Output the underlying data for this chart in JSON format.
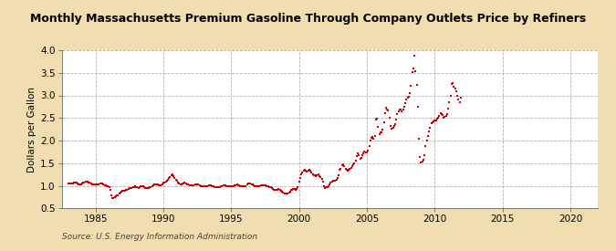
{
  "title": "Monthly Massachusetts Premium Gasoline Through Company Outlets Price by Refiners",
  "ylabel": "Dollars per Gallon",
  "source": "Source: U.S. Energy Information Administration",
  "background_color": "#f0deb0",
  "plot_bg_color": "#ffffff",
  "marker_color": "#cc0000",
  "xlim": [
    1982.5,
    2022
  ],
  "ylim": [
    0.5,
    4.0
  ],
  "xticks": [
    1985,
    1990,
    1995,
    2000,
    2005,
    2010,
    2015,
    2020
  ],
  "yticks": [
    0.5,
    1.0,
    1.5,
    2.0,
    2.5,
    3.0,
    3.5,
    4.0
  ],
  "data": [
    [
      1983.0,
      1.05
    ],
    [
      1983.08,
      1.05
    ],
    [
      1983.17,
      1.06
    ],
    [
      1983.25,
      1.06
    ],
    [
      1983.33,
      1.06
    ],
    [
      1983.42,
      1.07
    ],
    [
      1983.5,
      1.07
    ],
    [
      1983.58,
      1.07
    ],
    [
      1983.67,
      1.05
    ],
    [
      1983.75,
      1.04
    ],
    [
      1983.83,
      1.04
    ],
    [
      1983.92,
      1.04
    ],
    [
      1984.0,
      1.05
    ],
    [
      1984.08,
      1.07
    ],
    [
      1984.17,
      1.08
    ],
    [
      1984.25,
      1.09
    ],
    [
      1984.33,
      1.09
    ],
    [
      1984.42,
      1.09
    ],
    [
      1984.5,
      1.08
    ],
    [
      1984.58,
      1.07
    ],
    [
      1984.67,
      1.05
    ],
    [
      1984.75,
      1.04
    ],
    [
      1984.83,
      1.04
    ],
    [
      1984.92,
      1.03
    ],
    [
      1985.0,
      1.04
    ],
    [
      1985.08,
      1.04
    ],
    [
      1985.17,
      1.04
    ],
    [
      1985.25,
      1.04
    ],
    [
      1985.33,
      1.05
    ],
    [
      1985.42,
      1.06
    ],
    [
      1985.5,
      1.05
    ],
    [
      1985.58,
      1.04
    ],
    [
      1985.67,
      1.02
    ],
    [
      1985.75,
      1.01
    ],
    [
      1985.83,
      1.0
    ],
    [
      1985.92,
      0.98
    ],
    [
      1986.0,
      0.97
    ],
    [
      1986.08,
      0.9
    ],
    [
      1986.17,
      0.78
    ],
    [
      1986.25,
      0.73
    ],
    [
      1986.33,
      0.72
    ],
    [
      1986.42,
      0.74
    ],
    [
      1986.5,
      0.76
    ],
    [
      1986.58,
      0.78
    ],
    [
      1986.67,
      0.79
    ],
    [
      1986.75,
      0.82
    ],
    [
      1986.83,
      0.84
    ],
    [
      1986.92,
      0.86
    ],
    [
      1987.0,
      0.88
    ],
    [
      1987.08,
      0.88
    ],
    [
      1987.17,
      0.89
    ],
    [
      1987.25,
      0.9
    ],
    [
      1987.33,
      0.91
    ],
    [
      1987.42,
      0.92
    ],
    [
      1987.5,
      0.94
    ],
    [
      1987.58,
      0.95
    ],
    [
      1987.67,
      0.95
    ],
    [
      1987.75,
      0.96
    ],
    [
      1987.83,
      0.97
    ],
    [
      1987.92,
      0.98
    ],
    [
      1988.0,
      0.97
    ],
    [
      1988.08,
      0.96
    ],
    [
      1988.17,
      0.95
    ],
    [
      1988.25,
      0.96
    ],
    [
      1988.33,
      0.98
    ],
    [
      1988.42,
      0.99
    ],
    [
      1988.5,
      0.98
    ],
    [
      1988.58,
      0.97
    ],
    [
      1988.67,
      0.95
    ],
    [
      1988.75,
      0.94
    ],
    [
      1988.83,
      0.94
    ],
    [
      1988.92,
      0.94
    ],
    [
      1989.0,
      0.96
    ],
    [
      1989.08,
      0.97
    ],
    [
      1989.17,
      0.99
    ],
    [
      1989.25,
      1.01
    ],
    [
      1989.33,
      1.03
    ],
    [
      1989.42,
      1.04
    ],
    [
      1989.5,
      1.04
    ],
    [
      1989.58,
      1.03
    ],
    [
      1989.67,
      1.02
    ],
    [
      1989.75,
      1.01
    ],
    [
      1989.83,
      1.01
    ],
    [
      1989.92,
      1.04
    ],
    [
      1990.0,
      1.07
    ],
    [
      1990.08,
      1.08
    ],
    [
      1990.17,
      1.09
    ],
    [
      1990.25,
      1.11
    ],
    [
      1990.33,
      1.13
    ],
    [
      1990.42,
      1.17
    ],
    [
      1990.5,
      1.19
    ],
    [
      1990.58,
      1.24
    ],
    [
      1990.67,
      1.25
    ],
    [
      1990.75,
      1.22
    ],
    [
      1990.83,
      1.18
    ],
    [
      1990.92,
      1.14
    ],
    [
      1991.0,
      1.12
    ],
    [
      1991.08,
      1.08
    ],
    [
      1991.17,
      1.05
    ],
    [
      1991.25,
      1.04
    ],
    [
      1991.33,
      1.04
    ],
    [
      1991.42,
      1.05
    ],
    [
      1991.5,
      1.06
    ],
    [
      1991.58,
      1.07
    ],
    [
      1991.67,
      1.05
    ],
    [
      1991.75,
      1.04
    ],
    [
      1991.83,
      1.03
    ],
    [
      1991.92,
      1.02
    ],
    [
      1992.0,
      1.01
    ],
    [
      1992.08,
      1.01
    ],
    [
      1992.17,
      1.01
    ],
    [
      1992.25,
      1.02
    ],
    [
      1992.33,
      1.03
    ],
    [
      1992.42,
      1.04
    ],
    [
      1992.5,
      1.04
    ],
    [
      1992.58,
      1.03
    ],
    [
      1992.67,
      1.02
    ],
    [
      1992.75,
      1.0
    ],
    [
      1992.83,
      1.0
    ],
    [
      1992.92,
      0.99
    ],
    [
      1993.0,
      1.0
    ],
    [
      1993.08,
      1.0
    ],
    [
      1993.17,
      1.0
    ],
    [
      1993.25,
      1.0
    ],
    [
      1993.33,
      1.01
    ],
    [
      1993.42,
      1.02
    ],
    [
      1993.5,
      1.01
    ],
    [
      1993.58,
      1.0
    ],
    [
      1993.67,
      0.99
    ],
    [
      1993.75,
      0.97
    ],
    [
      1993.83,
      0.97
    ],
    [
      1993.92,
      0.96
    ],
    [
      1994.0,
      0.97
    ],
    [
      1994.08,
      0.97
    ],
    [
      1994.17,
      0.97
    ],
    [
      1994.25,
      0.98
    ],
    [
      1994.33,
      1.0
    ],
    [
      1994.42,
      1.01
    ],
    [
      1994.5,
      1.02
    ],
    [
      1994.58,
      1.01
    ],
    [
      1994.67,
      1.0
    ],
    [
      1994.75,
      0.99
    ],
    [
      1994.83,
      0.98
    ],
    [
      1994.92,
      0.98
    ],
    [
      1995.0,
      0.99
    ],
    [
      1995.08,
      0.99
    ],
    [
      1995.17,
      1.0
    ],
    [
      1995.25,
      1.01
    ],
    [
      1995.33,
      1.02
    ],
    [
      1995.42,
      1.03
    ],
    [
      1995.5,
      1.02
    ],
    [
      1995.58,
      1.01
    ],
    [
      1995.67,
      1.0
    ],
    [
      1995.75,
      0.99
    ],
    [
      1995.83,
      0.98
    ],
    [
      1995.92,
      0.98
    ],
    [
      1996.0,
      0.99
    ],
    [
      1996.08,
      1.0
    ],
    [
      1996.17,
      1.03
    ],
    [
      1996.25,
      1.06
    ],
    [
      1996.33,
      1.06
    ],
    [
      1996.42,
      1.05
    ],
    [
      1996.5,
      1.04
    ],
    [
      1996.58,
      1.03
    ],
    [
      1996.67,
      1.01
    ],
    [
      1996.75,
      1.0
    ],
    [
      1996.83,
      1.0
    ],
    [
      1996.92,
      0.99
    ],
    [
      1997.0,
      0.99
    ],
    [
      1997.08,
      1.0
    ],
    [
      1997.17,
      1.01
    ],
    [
      1997.25,
      1.02
    ],
    [
      1997.33,
      1.02
    ],
    [
      1997.42,
      1.02
    ],
    [
      1997.5,
      1.01
    ],
    [
      1997.58,
      1.0
    ],
    [
      1997.67,
      0.99
    ],
    [
      1997.75,
      0.98
    ],
    [
      1997.83,
      0.97
    ],
    [
      1997.92,
      0.96
    ],
    [
      1998.0,
      0.95
    ],
    [
      1998.08,
      0.93
    ],
    [
      1998.17,
      0.91
    ],
    [
      1998.25,
      0.9
    ],
    [
      1998.33,
      0.9
    ],
    [
      1998.42,
      0.91
    ],
    [
      1998.5,
      0.92
    ],
    [
      1998.58,
      0.91
    ],
    [
      1998.67,
      0.89
    ],
    [
      1998.75,
      0.87
    ],
    [
      1998.83,
      0.85
    ],
    [
      1998.92,
      0.83
    ],
    [
      1999.0,
      0.83
    ],
    [
      1999.08,
      0.83
    ],
    [
      1999.17,
      0.83
    ],
    [
      1999.25,
      0.85
    ],
    [
      1999.33,
      0.87
    ],
    [
      1999.42,
      0.9
    ],
    [
      1999.5,
      0.91
    ],
    [
      1999.58,
      0.92
    ],
    [
      1999.67,
      0.92
    ],
    [
      1999.75,
      0.91
    ],
    [
      1999.83,
      0.92
    ],
    [
      1999.92,
      0.97
    ],
    [
      2000.0,
      1.1
    ],
    [
      2000.08,
      1.17
    ],
    [
      2000.17,
      1.26
    ],
    [
      2000.25,
      1.3
    ],
    [
      2000.33,
      1.34
    ],
    [
      2000.42,
      1.35
    ],
    [
      2000.5,
      1.33
    ],
    [
      2000.58,
      1.32
    ],
    [
      2000.67,
      1.34
    ],
    [
      2000.75,
      1.36
    ],
    [
      2000.83,
      1.34
    ],
    [
      2000.92,
      1.3
    ],
    [
      2001.0,
      1.26
    ],
    [
      2001.08,
      1.24
    ],
    [
      2001.17,
      1.23
    ],
    [
      2001.25,
      1.22
    ],
    [
      2001.33,
      1.24
    ],
    [
      2001.42,
      1.26
    ],
    [
      2001.5,
      1.22
    ],
    [
      2001.58,
      1.2
    ],
    [
      2001.67,
      1.15
    ],
    [
      2001.75,
      1.1
    ],
    [
      2001.83,
      1.0
    ],
    [
      2001.92,
      0.95
    ],
    [
      2002.0,
      0.96
    ],
    [
      2002.08,
      0.96
    ],
    [
      2002.17,
      0.99
    ],
    [
      2002.25,
      1.03
    ],
    [
      2002.33,
      1.08
    ],
    [
      2002.42,
      1.1
    ],
    [
      2002.5,
      1.12
    ],
    [
      2002.58,
      1.12
    ],
    [
      2002.67,
      1.11
    ],
    [
      2002.75,
      1.13
    ],
    [
      2002.83,
      1.18
    ],
    [
      2002.92,
      1.24
    ],
    [
      2003.0,
      1.35
    ],
    [
      2003.08,
      1.38
    ],
    [
      2003.17,
      1.46
    ],
    [
      2003.25,
      1.48
    ],
    [
      2003.33,
      1.44
    ],
    [
      2003.42,
      1.38
    ],
    [
      2003.5,
      1.35
    ],
    [
      2003.58,
      1.33
    ],
    [
      2003.67,
      1.35
    ],
    [
      2003.75,
      1.38
    ],
    [
      2003.83,
      1.4
    ],
    [
      2003.92,
      1.43
    ],
    [
      2004.0,
      1.47
    ],
    [
      2004.08,
      1.5
    ],
    [
      2004.17,
      1.56
    ],
    [
      2004.25,
      1.65
    ],
    [
      2004.33,
      1.72
    ],
    [
      2004.42,
      1.68
    ],
    [
      2004.5,
      1.6
    ],
    [
      2004.58,
      1.62
    ],
    [
      2004.67,
      1.67
    ],
    [
      2004.75,
      1.72
    ],
    [
      2004.83,
      1.75
    ],
    [
      2004.92,
      1.73
    ],
    [
      2005.0,
      1.73
    ],
    [
      2005.08,
      1.77
    ],
    [
      2005.17,
      1.88
    ],
    [
      2005.25,
      1.99
    ],
    [
      2005.33,
      2.06
    ],
    [
      2005.42,
      2.08
    ],
    [
      2005.5,
      2.05
    ],
    [
      2005.58,
      2.1
    ],
    [
      2005.67,
      2.47
    ],
    [
      2005.75,
      2.48
    ],
    [
      2005.83,
      2.3
    ],
    [
      2005.92,
      2.15
    ],
    [
      2006.0,
      2.18
    ],
    [
      2006.08,
      2.19
    ],
    [
      2006.17,
      2.24
    ],
    [
      2006.25,
      2.4
    ],
    [
      2006.33,
      2.61
    ],
    [
      2006.42,
      2.72
    ],
    [
      2006.5,
      2.68
    ],
    [
      2006.58,
      2.67
    ],
    [
      2006.67,
      2.5
    ],
    [
      2006.75,
      2.32
    ],
    [
      2006.83,
      2.27
    ],
    [
      2006.92,
      2.29
    ],
    [
      2007.0,
      2.33
    ],
    [
      2007.08,
      2.37
    ],
    [
      2007.17,
      2.47
    ],
    [
      2007.25,
      2.58
    ],
    [
      2007.33,
      2.65
    ],
    [
      2007.42,
      2.68
    ],
    [
      2007.5,
      2.68
    ],
    [
      2007.58,
      2.65
    ],
    [
      2007.67,
      2.68
    ],
    [
      2007.75,
      2.75
    ],
    [
      2007.83,
      2.82
    ],
    [
      2007.92,
      2.9
    ],
    [
      2008.0,
      2.95
    ],
    [
      2008.08,
      2.96
    ],
    [
      2008.17,
      3.06
    ],
    [
      2008.25,
      3.22
    ],
    [
      2008.33,
      3.52
    ],
    [
      2008.42,
      3.6
    ],
    [
      2008.5,
      3.87
    ],
    [
      2008.58,
      3.54
    ],
    [
      2008.67,
      3.24
    ],
    [
      2008.75,
      2.75
    ],
    [
      2008.83,
      2.05
    ],
    [
      2008.92,
      1.64
    ],
    [
      2009.0,
      1.52
    ],
    [
      2009.08,
      1.53
    ],
    [
      2009.17,
      1.58
    ],
    [
      2009.25,
      1.68
    ],
    [
      2009.33,
      1.88
    ],
    [
      2009.42,
      2.0
    ],
    [
      2009.5,
      2.1
    ],
    [
      2009.58,
      2.2
    ],
    [
      2009.67,
      2.28
    ],
    [
      2009.75,
      2.38
    ],
    [
      2009.83,
      2.4
    ],
    [
      2009.92,
      2.42
    ],
    [
      2010.0,
      2.45
    ],
    [
      2010.08,
      2.45
    ],
    [
      2010.17,
      2.48
    ],
    [
      2010.25,
      2.5
    ],
    [
      2010.33,
      2.55
    ],
    [
      2010.42,
      2.6
    ],
    [
      2010.5,
      2.58
    ],
    [
      2010.58,
      2.56
    ],
    [
      2010.67,
      2.5
    ],
    [
      2010.75,
      2.53
    ],
    [
      2010.83,
      2.55
    ],
    [
      2010.92,
      2.58
    ],
    [
      2011.0,
      2.7
    ],
    [
      2011.08,
      2.85
    ],
    [
      2011.17,
      3.0
    ],
    [
      2011.25,
      3.25
    ],
    [
      2011.33,
      3.28
    ],
    [
      2011.42,
      3.2
    ],
    [
      2011.5,
      3.15
    ],
    [
      2011.58,
      3.1
    ],
    [
      2011.67,
      3.0
    ],
    [
      2011.75,
      2.9
    ],
    [
      2011.83,
      2.85
    ],
    [
      2011.92,
      2.95
    ]
  ]
}
